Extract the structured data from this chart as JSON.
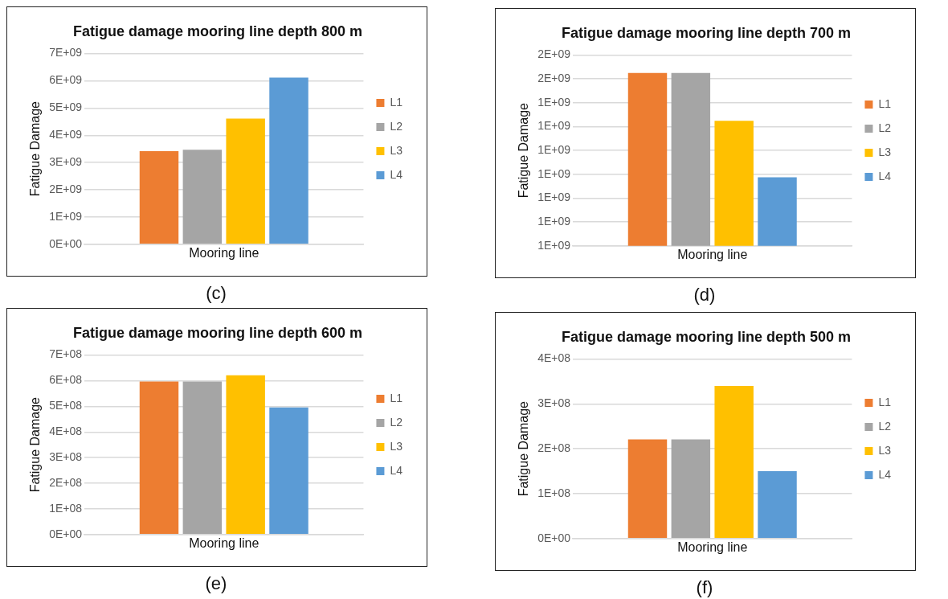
{
  "chart_data": [
    {
      "type": "bar",
      "title": "Fatigue damage mooring line depth 800 m",
      "xlabel": "Mooring line",
      "ylabel": "Fatigue Damage",
      "categories": [
        null
      ],
      "series": [
        {
          "name": "L1",
          "color": "#ed7d31",
          "values": [
            3420000000.0
          ]
        },
        {
          "name": "L2",
          "color": "#a5a5a5",
          "values": [
            3470000000.0
          ]
        },
        {
          "name": "L3",
          "color": "#ffc000",
          "values": [
            4610000000.0
          ]
        },
        {
          "name": "L4",
          "color": "#5b9bd5",
          "values": [
            6120000000.0
          ]
        }
      ],
      "ylim": [
        0,
        7000000000.0
      ],
      "yticks": [
        {
          "value": 0,
          "label": "0E+00"
        },
        {
          "value": 1000000000.0,
          "label": "1E+09"
        },
        {
          "value": 2000000000.0,
          "label": "2E+09"
        },
        {
          "value": 3000000000.0,
          "label": "3E+09"
        },
        {
          "value": 4000000000.0,
          "label": "4E+09"
        },
        {
          "value": 5000000000.0,
          "label": "5E+09"
        },
        {
          "value": 6000000000.0,
          "label": "6E+09"
        },
        {
          "value": 7000000000.0,
          "label": "7E+09"
        }
      ],
      "grid": "y",
      "legend": "right",
      "annotations": [
        "(c)"
      ]
    },
    {
      "type": "bar",
      "title": "Fatigue damage mooring line depth 700 m",
      "xlabel": "Mooring line",
      "ylabel": "Fatigue Damage",
      "categories": [
        null
      ],
      "series": [
        {
          "name": "L1",
          "color": "#ed7d31",
          "values": [
            1580000000.0
          ]
        },
        {
          "name": "L2",
          "color": "#a5a5a5",
          "values": [
            1580000000.0
          ]
        },
        {
          "name": "L3",
          "color": "#ffc000",
          "values": [
            1420000000.0
          ]
        },
        {
          "name": "L4",
          "color": "#5b9bd5",
          "values": [
            1230000000.0
          ]
        }
      ],
      "ylim": [
        1000000000.0,
        1640000000.0
      ],
      "yticks": [
        {
          "value": 1000000000.0,
          "label": "1E+09"
        },
        {
          "value": 1080000000.0,
          "label": "1E+09"
        },
        {
          "value": 1160000000.0,
          "label": "1E+09"
        },
        {
          "value": 1240000000.0,
          "label": "1E+09"
        },
        {
          "value": 1320000000.0,
          "label": "1E+09"
        },
        {
          "value": 1400000000.0,
          "label": "1E+09"
        },
        {
          "value": 1480000000.0,
          "label": "1E+09"
        },
        {
          "value": 1560000000.0,
          "label": "2E+09"
        },
        {
          "value": 1640000000.0,
          "label": "2E+09"
        }
      ],
      "grid": "y",
      "legend": "right",
      "annotations": [
        "(d)"
      ]
    },
    {
      "type": "bar",
      "title": "Fatigue damage mooring line depth 600 m",
      "xlabel": "Mooring line",
      "ylabel": "Fatigue Damage",
      "categories": [
        null
      ],
      "series": [
        {
          "name": "L1",
          "color": "#ed7d31",
          "values": [
            597000000.0
          ]
        },
        {
          "name": "L2",
          "color": "#a5a5a5",
          "values": [
            597000000.0
          ]
        },
        {
          "name": "L3",
          "color": "#ffc000",
          "values": [
            621000000.0
          ]
        },
        {
          "name": "L4",
          "color": "#5b9bd5",
          "values": [
            496000000.0
          ]
        }
      ],
      "ylim": [
        0,
        700000000.0
      ],
      "yticks": [
        {
          "value": 0,
          "label": "0E+00"
        },
        {
          "value": 100000000.0,
          "label": "1E+08"
        },
        {
          "value": 200000000.0,
          "label": "2E+08"
        },
        {
          "value": 300000000.0,
          "label": "3E+08"
        },
        {
          "value": 400000000.0,
          "label": "4E+08"
        },
        {
          "value": 500000000.0,
          "label": "5E+08"
        },
        {
          "value": 600000000.0,
          "label": "6E+08"
        },
        {
          "value": 700000000.0,
          "label": "7E+08"
        }
      ],
      "grid": "y",
      "legend": "right",
      "annotations": [
        "(e)"
      ]
    },
    {
      "type": "bar",
      "title": "Fatigue damage mooring line depth 500 m",
      "xlabel": "Mooring line",
      "ylabel": "Fatigue Damage",
      "categories": [
        null
      ],
      "series": [
        {
          "name": "L1",
          "color": "#ed7d31",
          "values": [
            221000000.0
          ]
        },
        {
          "name": "L2",
          "color": "#a5a5a5",
          "values": [
            221000000.0
          ]
        },
        {
          "name": "L3",
          "color": "#ffc000",
          "values": [
            340000000.0
          ]
        },
        {
          "name": "L4",
          "color": "#5b9bd5",
          "values": [
            150000000.0
          ]
        }
      ],
      "ylim": [
        0,
        400000000.0
      ],
      "yticks": [
        {
          "value": 0,
          "label": "0E+00"
        },
        {
          "value": 100000000.0,
          "label": "1E+08"
        },
        {
          "value": 200000000.0,
          "label": "2E+08"
        },
        {
          "value": 300000000.0,
          "label": "3E+08"
        },
        {
          "value": 400000000.0,
          "label": "4E+08"
        }
      ],
      "grid": "y",
      "legend": "right",
      "annotations": [
        "(f)"
      ]
    }
  ]
}
